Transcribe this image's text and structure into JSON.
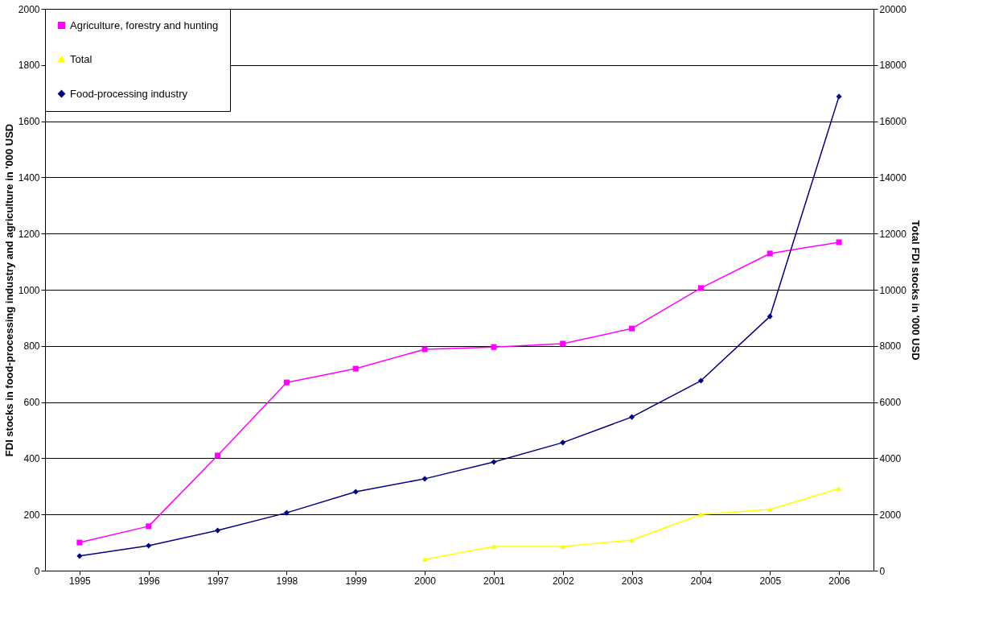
{
  "chart_data": {
    "type": "line",
    "ylabel": "FDI stocks in food-processing industry and agriculture in '000 USD",
    "y2label": "Total FDI stocks in '000 USD",
    "categories": [
      "1995",
      "1996",
      "1997",
      "1998",
      "1999",
      "2000",
      "2001",
      "2002",
      "2003",
      "2004",
      "2005",
      "2006"
    ],
    "series": [
      {
        "name": "Agriculture, forestry and hunting",
        "color": "#ff00ff",
        "marker": "square",
        "values": [
          100,
          158,
          410,
          670,
          719,
          788,
          796,
          808,
          862,
          1006,
          1129,
          1169
        ]
      },
      {
        "name": "Total",
        "color": "#ffff00",
        "marker": "triangle",
        "axis": "y2",
        "values": [
          null,
          null,
          null,
          null,
          null,
          400,
          860,
          860,
          1090,
          2000,
          2180,
          2920
        ]
      },
      {
        "name": "Food-processing industry",
        "color": "#000080",
        "marker": "diamond",
        "values": [
          52,
          89,
          143,
          206,
          281,
          327,
          387,
          456,
          547,
          676,
          905,
          1688
        ]
      }
    ],
    "ylim": [
      0,
      2000
    ],
    "yticks": [
      0,
      200,
      400,
      600,
      800,
      1000,
      1200,
      1400,
      1600,
      1800,
      2000
    ],
    "y2lim": [
      0,
      20000
    ],
    "y2ticks": [
      0,
      2000,
      4000,
      6000,
      8000,
      10000,
      12000,
      14000,
      16000,
      18000,
      20000
    ],
    "grid": "y",
    "legend": "top left"
  }
}
